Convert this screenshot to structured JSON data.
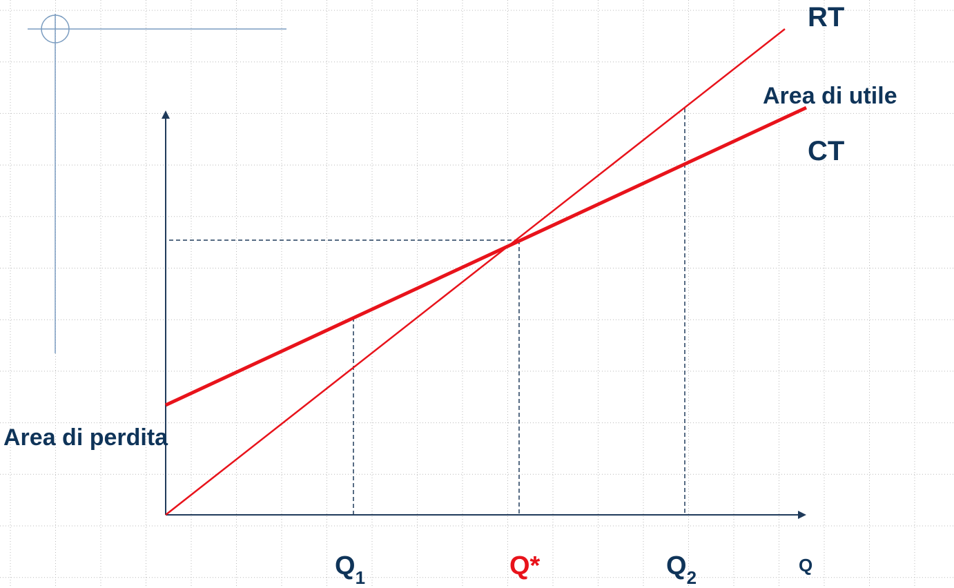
{
  "labels": {
    "rt": "RT",
    "profit_area": "Area di utile",
    "ct": "CT",
    "loss_area": "Area di perdita",
    "q1": {
      "main": "Q",
      "sub": "1"
    },
    "q_star": "Q*",
    "q2": {
      "main": "Q",
      "sub": "2"
    },
    "q_axis": "Q"
  }
}
